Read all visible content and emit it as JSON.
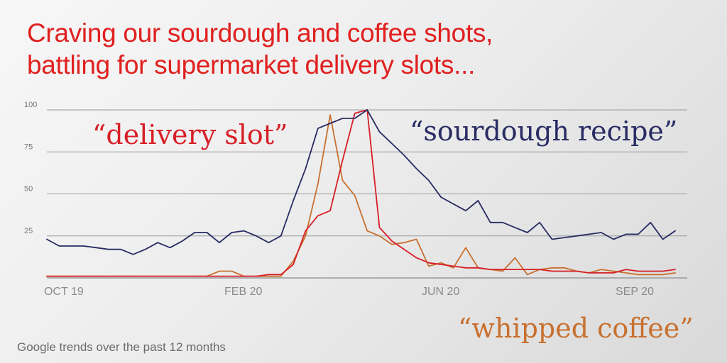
{
  "title": {
    "line1": "Craving our sourdough and coffee shots,",
    "line2": "battling for supermarket delivery slots..."
  },
  "footer": "Google trends over the past 12 months",
  "colors": {
    "title": "#e0201f",
    "sourdough": "#282b63",
    "delivery": "#d71e26",
    "coffee": "#c8702f",
    "grid": "#9a9a9a",
    "tick_text": "#777777",
    "axis_label": "#8a8a8a"
  },
  "chart_data": {
    "type": "line",
    "ylim": [
      0,
      100
    ],
    "yticks": [
      "100",
      "75",
      "50",
      "25"
    ],
    "xtick_labels": [
      "OCT 19",
      "FEB 20",
      "JUN 20",
      "SEP 20"
    ],
    "xlabel": "",
    "ylabel": "",
    "grid": true,
    "series": [
      {
        "name": "“sourdough recipe”",
        "color": "#282b63",
        "values": [
          23,
          19,
          19,
          19,
          18,
          17,
          17,
          14,
          17,
          21,
          18,
          22,
          27,
          27,
          21,
          27,
          28,
          25,
          21,
          25,
          46,
          65,
          89,
          92,
          95,
          95,
          100,
          87,
          80,
          73,
          65,
          58,
          48,
          44,
          40,
          46,
          33,
          33,
          30,
          27,
          33,
          23,
          24,
          25,
          26,
          27,
          23,
          26,
          26,
          33,
          23,
          28
        ]
      },
      {
        "name": "“delivery slot”",
        "color": "#d71e26",
        "values": [
          1,
          1,
          1,
          1,
          1,
          1,
          1,
          1,
          1,
          1,
          1,
          1,
          1,
          1,
          1,
          1,
          1,
          1,
          2,
          2,
          8,
          28,
          37,
          40,
          70,
          98,
          100,
          30,
          22,
          17,
          12,
          9,
          8,
          7,
          6,
          6,
          5,
          5,
          5,
          5,
          5,
          4,
          4,
          4,
          3,
          3,
          3,
          5,
          4,
          4,
          4,
          5
        ]
      },
      {
        "name": "“whipped coffee”",
        "color": "#c8702f",
        "values": [
          1,
          1,
          1,
          1,
          1,
          1,
          1,
          1,
          1,
          1,
          1,
          1,
          1,
          1,
          4,
          4,
          1,
          1,
          1,
          1,
          10,
          25,
          56,
          97,
          58,
          49,
          28,
          25,
          20,
          21,
          23,
          7,
          9,
          6,
          18,
          6,
          5,
          4,
          12,
          2,
          5,
          6,
          6,
          4,
          3,
          5,
          4,
          3,
          2,
          2,
          2,
          3
        ]
      }
    ]
  }
}
